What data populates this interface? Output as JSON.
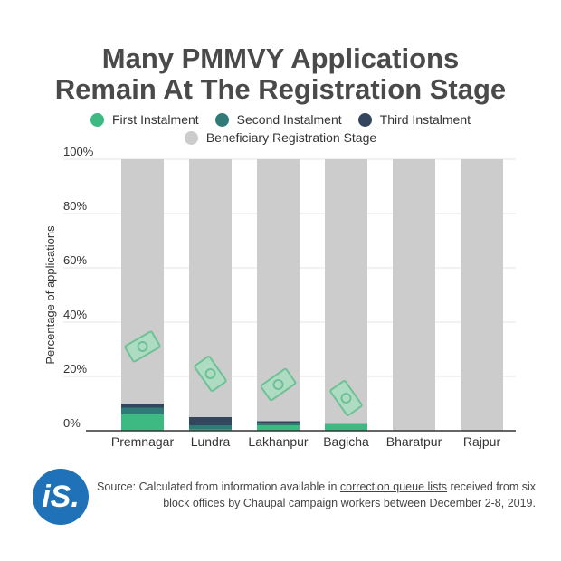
{
  "title_line1": "Many PMMVY Applications",
  "title_line2": "Remain At The Registration Stage",
  "legend": [
    {
      "label": "First Instalment",
      "color": "#3dba81"
    },
    {
      "label": "Second Instalment",
      "color": "#307a78"
    },
    {
      "label": "Third Instalment",
      "color": "#34465e"
    },
    {
      "label": "Beneficiary Registration Stage",
      "color": "#cccccc"
    }
  ],
  "chart_data": {
    "type": "bar",
    "stacked": true,
    "categories": [
      "Premnagar",
      "Lundra",
      "Lakhanpur",
      "Bagicha",
      "Bharatpur",
      "Rajpur"
    ],
    "series": [
      {
        "name": "First Instalment",
        "color": "#3dba81",
        "values": [
          6,
          0.5,
          2,
          2.5,
          0,
          0
        ]
      },
      {
        "name": "Second Instalment",
        "color": "#307a78",
        "values": [
          2.5,
          1.5,
          1,
          0,
          0,
          0
        ]
      },
      {
        "name": "Third Instalment",
        "color": "#34465e",
        "values": [
          1.5,
          3,
          0.5,
          0,
          0,
          0
        ]
      },
      {
        "name": "Beneficiary Registration Stage",
        "color": "#cccccc",
        "values": [
          90,
          95,
          96.5,
          97.5,
          100,
          100
        ]
      }
    ],
    "ylabel": "Percentage of applications",
    "xlabel": "",
    "ylim": [
      0,
      100
    ],
    "yticks": [
      "0%",
      "20%",
      "40%",
      "60%",
      "80%",
      "100%"
    ],
    "grid": true
  },
  "source": {
    "prefix": "Source: Calculated from information available in ",
    "link": "correction queue lists",
    "suffix": " received from six block offices by Chaupal campaign workers between December 2-8, 2019."
  },
  "logo_text": "iS.",
  "logo_color": "#1f72b7",
  "decoration_icon": "money-note-icon"
}
